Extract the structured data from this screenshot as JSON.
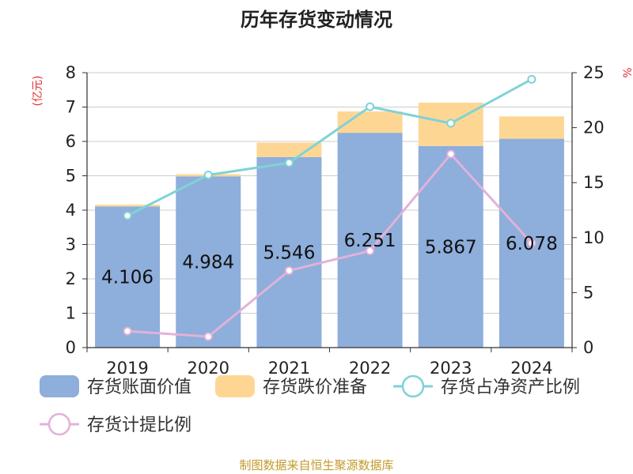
{
  "chart_data": {
    "type": "bar",
    "title": "历年存货变动情况",
    "left_unit": "(亿元)",
    "right_unit": "%",
    "categories": [
      "2019",
      "2020",
      "2021",
      "2022",
      "2023",
      "2024"
    ],
    "left_ylim": [
      0,
      8
    ],
    "left_ticks": [
      "0",
      "1",
      "2",
      "3",
      "4",
      "5",
      "6",
      "7",
      "8"
    ],
    "right_ylim": [
      0,
      25
    ],
    "right_ticks": [
      "0",
      "5",
      "10",
      "15",
      "20",
      "25"
    ],
    "grid": true,
    "legend_placement": "bottom",
    "series": [
      {
        "name": "存货账面价值",
        "kind": "bar",
        "axis": "left",
        "color": "#8eaedb",
        "values": [
          4.106,
          4.984,
          5.546,
          6.251,
          5.867,
          6.078
        ],
        "labels": [
          "4.106",
          "4.984",
          "5.546",
          "6.251",
          "5.867",
          "6.078"
        ]
      },
      {
        "name": "存货跌价准备",
        "kind": "bar-stacked",
        "axis": "left",
        "color": "#fed694",
        "values": [
          0.05,
          0.06,
          0.42,
          0.62,
          1.26,
          0.65
        ]
      },
      {
        "name": "存货占净资产比例",
        "kind": "line",
        "axis": "right",
        "color": "#7fd3d6",
        "values": [
          12.0,
          15.7,
          16.8,
          21.9,
          20.4,
          24.4
        ]
      },
      {
        "name": "存货计提比例",
        "kind": "line",
        "axis": "right",
        "color": "#e3b1d9",
        "values": [
          1.5,
          1.0,
          7.0,
          8.8,
          17.6,
          9.5
        ]
      }
    ],
    "source": "制图数据来自恒生聚源数据库",
    "colors": {
      "source": "#c49a2c",
      "unit": "#e03030",
      "axis": "#333333",
      "grid": "#cccccc"
    }
  }
}
